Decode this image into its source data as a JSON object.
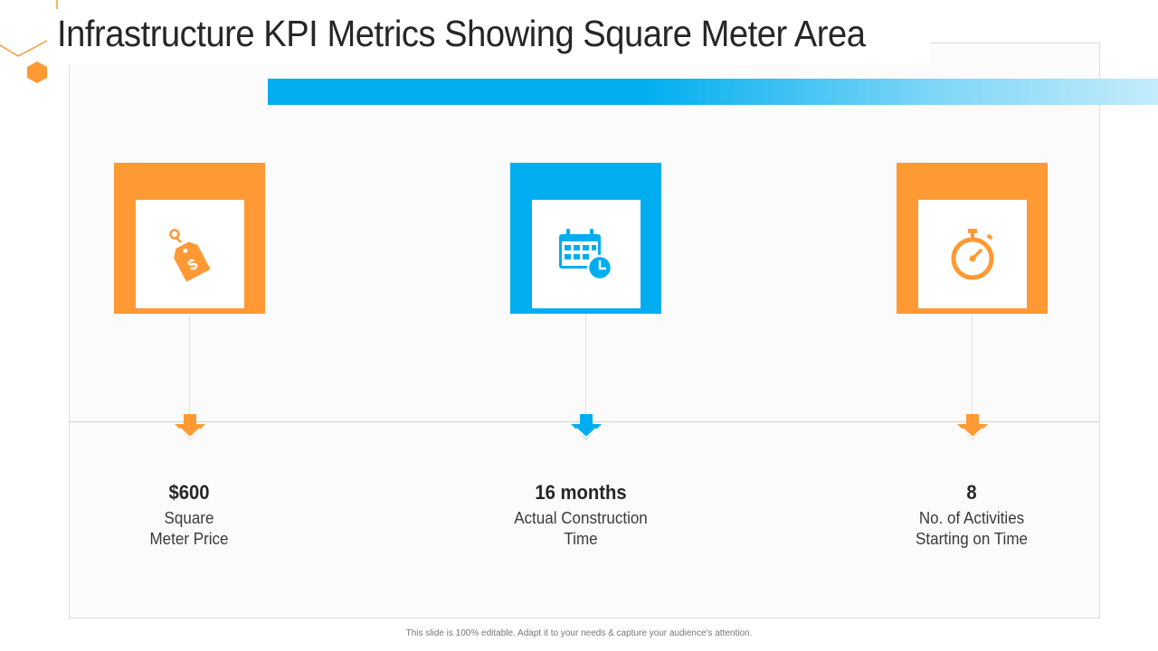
{
  "slide": {
    "title": "Infrastructure KPI Metrics Showing Square Meter Area",
    "footer": "This slide is 100% editable. Adapt it to your needs & capture your audience's attention."
  },
  "colors": {
    "orange": "#ff9933",
    "blue": "#00aeef",
    "title_text": "#262626"
  },
  "kpis": [
    {
      "value": "$600",
      "label_line1": "Square",
      "label_line2": "Meter Price",
      "icon": "price-tag-dollar-icon",
      "color": "orange"
    },
    {
      "value": "16 months",
      "label_line1": "Actual Construction",
      "label_line2": "Time",
      "icon": "calendar-clock-icon",
      "color": "blue"
    },
    {
      "value": "8",
      "label_line1": "No. of Activities",
      "label_line2": "Starting on Time",
      "icon": "stopwatch-icon",
      "color": "orange"
    }
  ]
}
